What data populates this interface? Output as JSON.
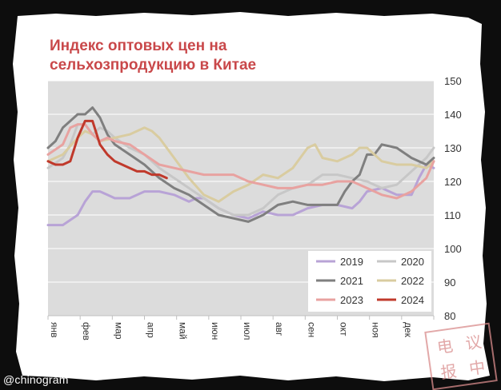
{
  "title": "Индекс оптовых цен на сельхозпродукцию в Китае",
  "watermark": "@chinogram",
  "stamp_text": "电 议 报 中",
  "chart_data": {
    "type": "line",
    "title": "Индекс оптовых цен на сельхозпродукцию в Китае",
    "xlabel": "",
    "ylabel": "",
    "x_unit": "week",
    "xlim": [
      1,
      53
    ],
    "ylim": [
      80,
      150
    ],
    "y_ticks": [
      80,
      90,
      100,
      110,
      120,
      130,
      140,
      150
    ],
    "y_axis_side": "right",
    "month_labels": [
      "янв",
      "фев",
      "мар",
      "апр",
      "май",
      "июн",
      "июл",
      "авг",
      "сен",
      "окт",
      "ноя",
      "дек"
    ],
    "grid": true,
    "legend": "bottom-right",
    "colors": {
      "2019": "#b8a3d6",
      "2020": "#c7c7c7",
      "2021": "#7f7f7f",
      "2022": "#d9cca0",
      "2023": "#e8a2a0",
      "2024": "#c0392b"
    },
    "series": [
      {
        "name": "2019",
        "x": [
          1,
          3,
          5,
          6,
          7,
          8,
          9,
          10,
          12,
          14,
          16,
          18,
          20,
          21,
          22,
          24,
          26,
          28,
          30,
          32,
          34,
          36,
          38,
          40,
          42,
          43,
          44,
          46,
          48,
          50,
          51,
          52,
          53
        ],
        "values": [
          107,
          107,
          110,
          114,
          117,
          117,
          116,
          115,
          115,
          117,
          117,
          116,
          114,
          115,
          115,
          112,
          110,
          109,
          111,
          110,
          110,
          112,
          113,
          113,
          112,
          114,
          117,
          118,
          116,
          116,
          121,
          125,
          124
        ]
      },
      {
        "name": "2020",
        "x": [
          1,
          3,
          4,
          5,
          6,
          7,
          8,
          9,
          10,
          12,
          14,
          16,
          18,
          20,
          22,
          24,
          26,
          28,
          30,
          32,
          34,
          36,
          38,
          40,
          42,
          44,
          45,
          46,
          48,
          50,
          52,
          53
        ],
        "values": [
          124,
          127,
          131,
          137,
          137,
          134,
          136,
          135,
          133,
          130,
          128,
          124,
          121,
          118,
          115,
          112,
          110,
          110,
          112,
          116,
          118,
          119,
          122,
          122,
          121,
          120,
          119,
          118,
          119,
          123,
          127,
          130
        ]
      },
      {
        "name": "2021",
        "x": [
          1,
          2,
          3,
          4,
          5,
          6,
          7,
          8,
          9,
          10,
          12,
          14,
          16,
          18,
          20,
          22,
          24,
          26,
          28,
          30,
          32,
          34,
          36,
          38,
          40,
          41,
          42,
          43,
          44,
          45,
          46,
          48,
          50,
          52,
          53
        ],
        "values": [
          130,
          132,
          136,
          138,
          140,
          140,
          142,
          139,
          134,
          131,
          128,
          125,
          121,
          118,
          116,
          113,
          110,
          109,
          108,
          110,
          113,
          114,
          113,
          113,
          113,
          117,
          120,
          122,
          128,
          128,
          131,
          130,
          127,
          125,
          127
        ]
      },
      {
        "name": "2022",
        "x": [
          1,
          3,
          5,
          6,
          7,
          8,
          10,
          12,
          14,
          15,
          16,
          18,
          20,
          22,
          24,
          26,
          28,
          30,
          32,
          34,
          36,
          37,
          38,
          40,
          42,
          43,
          44,
          46,
          48,
          50,
          52,
          53
        ],
        "values": [
          126,
          128,
          133,
          135,
          134,
          132,
          133,
          134,
          136,
          135,
          133,
          127,
          121,
          116,
          114,
          117,
          119,
          122,
          121,
          124,
          130,
          131,
          127,
          126,
          128,
          130,
          130,
          126,
          125,
          125,
          124,
          126
        ]
      },
      {
        "name": "2023",
        "x": [
          1,
          3,
          4,
          5,
          6,
          7,
          8,
          9,
          10,
          12,
          14,
          16,
          18,
          20,
          22,
          24,
          26,
          28,
          30,
          32,
          34,
          36,
          38,
          40,
          42,
          44,
          46,
          48,
          50,
          52,
          53
        ],
        "values": [
          128,
          131,
          136,
          137,
          137,
          134,
          132,
          133,
          132,
          131,
          128,
          125,
          124,
          123,
          122,
          122,
          122,
          120,
          119,
          118,
          118,
          119,
          119,
          120,
          120,
          118,
          116,
          115,
          117,
          121,
          126
        ]
      },
      {
        "name": "2024",
        "x": [
          1,
          2,
          3,
          4,
          5,
          6,
          7,
          8,
          9,
          10,
          11,
          12,
          13,
          14,
          15,
          16,
          17
        ],
        "values": [
          126,
          125,
          125,
          126,
          133,
          138,
          138,
          131,
          128,
          126,
          125,
          124,
          123,
          123,
          122,
          122,
          121
        ]
      }
    ]
  }
}
